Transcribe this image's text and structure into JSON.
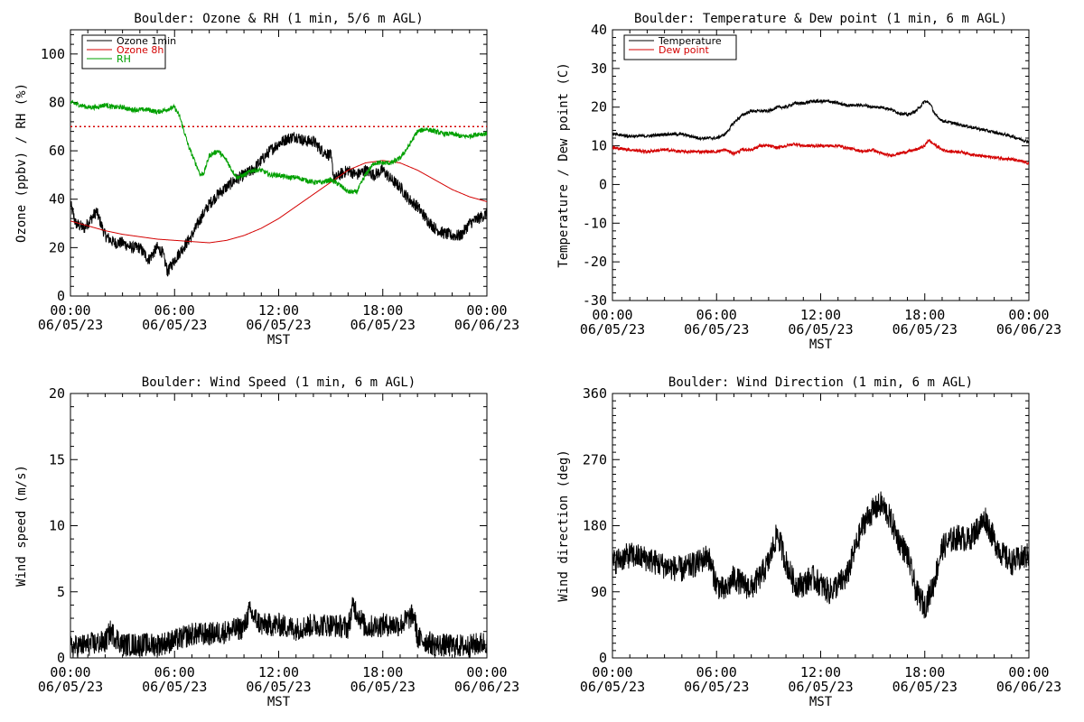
{
  "chart_data": [
    {
      "type": "line",
      "title": "Boulder: Ozone & RH (1 min, 5/6 m AGL)",
      "ylabel": "Ozone (ppbv) / RH (%)",
      "xlabel": "MST",
      "ylim": [
        0,
        110
      ],
      "yticks": [
        0,
        20,
        40,
        60,
        80,
        100
      ],
      "xlim": [
        0,
        24
      ],
      "xticks": [
        {
          "t": "00:00",
          "d": "06/05/23"
        },
        {
          "t": "06:00",
          "d": "06/05/23"
        },
        {
          "t": "12:00",
          "d": "06/05/23"
        },
        {
          "t": "18:00",
          "d": "06/05/23"
        },
        {
          "t": "00:00",
          "d": "06/06/23"
        }
      ],
      "legend": "top-left",
      "reference_line": {
        "y": 70,
        "color": "#d40000",
        "style": "dotted"
      },
      "series": [
        {
          "name": "Ozone 1min",
          "color": "#000000",
          "noise": 2.5,
          "x": [
            0,
            0.3,
            0.8,
            1.2,
            1.5,
            2,
            2.5,
            3,
            3.5,
            4,
            4.5,
            5,
            5.3,
            5.6,
            6,
            6.5,
            7,
            7.5,
            8,
            8.5,
            9,
            9.5,
            10,
            10.5,
            11,
            11.5,
            12,
            12.5,
            13,
            13.5,
            14,
            14.5,
            15,
            15.2,
            15.5,
            16,
            16.5,
            17,
            17.5,
            18,
            18.5,
            19,
            19.5,
            20,
            20.5,
            21,
            21.5,
            22,
            22.5,
            23,
            23.5,
            24
          ],
          "y": [
            38,
            30,
            28,
            32,
            35,
            25,
            22,
            22,
            20,
            20,
            15,
            20,
            18,
            10,
            15,
            20,
            25,
            32,
            38,
            42,
            45,
            48,
            50,
            52,
            56,
            60,
            63,
            65,
            66,
            64,
            64,
            60,
            58,
            48,
            50,
            52,
            50,
            52,
            50,
            52,
            48,
            45,
            40,
            37,
            32,
            28,
            26,
            25,
            25,
            30,
            32,
            34
          ]
        },
        {
          "name": "Ozone 8h",
          "color": "#d40000",
          "noise": 0,
          "x": [
            0,
            1,
            2,
            3,
            4,
            5,
            6,
            7,
            8,
            9,
            10,
            11,
            12,
            13,
            14,
            15,
            16,
            17,
            18,
            19,
            20,
            21,
            22,
            23,
            24
          ],
          "y": [
            31,
            29,
            27,
            25.5,
            24.5,
            23.5,
            23,
            22.5,
            22,
            23,
            25,
            28,
            32,
            37,
            42,
            47,
            52,
            55,
            56,
            55,
            52,
            48,
            44,
            41,
            39
          ]
        },
        {
          "name": "RH",
          "color": "#00a000",
          "noise": 1,
          "x": [
            0,
            0.5,
            1,
            1.5,
            2,
            2.5,
            3,
            3.5,
            4,
            4.5,
            5,
            5.5,
            6,
            6.3,
            6.8,
            7.2,
            7.5,
            7.7,
            8,
            8.5,
            9,
            9.3,
            9.6,
            10,
            10.5,
            11,
            11.5,
            12,
            12.5,
            13,
            13.5,
            14,
            14.5,
            15,
            15.5,
            16,
            16.5,
            17,
            17.5,
            18,
            18.5,
            19,
            19.5,
            20,
            20.5,
            21,
            21.5,
            22,
            22.5,
            23,
            23.5,
            24
          ],
          "y": [
            80,
            79,
            78,
            78,
            79,
            78,
            78,
            77,
            77,
            77,
            76,
            77,
            78,
            74,
            62,
            55,
            50,
            51,
            58,
            60,
            56,
            52,
            49,
            50,
            52,
            52,
            50,
            50,
            49,
            49,
            48,
            47,
            47,
            48,
            46,
            43,
            43,
            50,
            55,
            55,
            55,
            57,
            62,
            68,
            69,
            68,
            67,
            67,
            66,
            66,
            67,
            67
          ]
        }
      ]
    },
    {
      "type": "line",
      "title": "Boulder: Temperature & Dew point (1 min, 6 m AGL)",
      "ylabel": "Temperature / Dew point (C)",
      "xlabel": "MST",
      "ylim": [
        -30,
        40
      ],
      "yticks": [
        -30,
        -20,
        -10,
        0,
        10,
        20,
        30,
        40
      ],
      "xlim": [
        0,
        24
      ],
      "xticks": [
        {
          "t": "00:00",
          "d": "06/05/23"
        },
        {
          "t": "06:00",
          "d": "06/05/23"
        },
        {
          "t": "12:00",
          "d": "06/05/23"
        },
        {
          "t": "18:00",
          "d": "06/05/23"
        },
        {
          "t": "00:00",
          "d": "06/06/23"
        }
      ],
      "legend": "top-left",
      "series": [
        {
          "name": "Temperature",
          "color": "#000000",
          "noise": 0.4,
          "x": [
            0,
            1,
            2,
            3,
            4,
            5,
            6,
            6.5,
            7,
            7.5,
            8,
            8.5,
            9,
            9.5,
            10,
            10.5,
            11,
            11.5,
            12,
            12.5,
            13,
            13.5,
            14,
            14.5,
            15,
            15.5,
            16,
            16.5,
            17,
            17.5,
            18,
            18.3,
            18.6,
            19,
            19.5,
            20,
            20.5,
            21,
            22,
            23,
            24
          ],
          "y": [
            13,
            12.5,
            12.5,
            13,
            13,
            12,
            12,
            13,
            16,
            18,
            19,
            19,
            19,
            20,
            20,
            21,
            21,
            21.5,
            21.5,
            21.5,
            21,
            20.5,
            20.5,
            20.5,
            20,
            20,
            19.5,
            18.5,
            18,
            19,
            21.5,
            21,
            18,
            16.5,
            16,
            15.5,
            15,
            14.5,
            13.5,
            12.5,
            11
          ]
        },
        {
          "name": "Dew point",
          "color": "#d40000",
          "noise": 0.4,
          "x": [
            0,
            1,
            2,
            3,
            4,
            5,
            6,
            6.5,
            7,
            7.5,
            8,
            8.5,
            9,
            9.5,
            10,
            10.5,
            11,
            11.5,
            12,
            12.5,
            13,
            13.5,
            14,
            14.5,
            15,
            15.5,
            16,
            16.5,
            17,
            17.5,
            18,
            18.2,
            18.5,
            19,
            19.5,
            20,
            20.5,
            21,
            22,
            23,
            24
          ],
          "y": [
            9.5,
            9,
            8.5,
            9,
            8.5,
            8.5,
            8.5,
            9,
            8,
            9,
            9,
            10,
            10,
            9.5,
            10,
            10.5,
            10,
            10,
            10,
            10,
            10,
            9.5,
            9,
            8.5,
            9,
            8,
            7.5,
            8,
            8.5,
            9,
            10,
            11.5,
            10.5,
            9,
            8.5,
            8.5,
            8,
            7.5,
            7,
            6.5,
            5.5
          ]
        }
      ]
    },
    {
      "type": "line",
      "title": "Boulder: Wind Speed (1 min, 6 m AGL)",
      "ylabel": "Wind speed (m/s)",
      "xlabel": "MST",
      "ylim": [
        0,
        20
      ],
      "yticks": [
        0,
        5,
        10,
        15,
        20
      ],
      "xlim": [
        0,
        24
      ],
      "xticks": [
        {
          "t": "00:00",
          "d": "06/05/23"
        },
        {
          "t": "06:00",
          "d": "06/05/23"
        },
        {
          "t": "12:00",
          "d": "06/05/23"
        },
        {
          "t": "18:00",
          "d": "06/05/23"
        },
        {
          "t": "00:00",
          "d": "06/06/23"
        }
      ],
      "series": [
        {
          "color": "#000000",
          "noise": 0.9,
          "x": [
            0,
            1,
            2,
            2.3,
            3,
            4,
            5,
            6,
            7,
            8,
            9,
            10,
            10.3,
            11,
            12,
            13,
            14,
            15,
            16,
            16.3,
            17,
            18,
            19,
            19.8,
            20,
            21,
            22,
            23,
            24
          ],
          "y": [
            0.8,
            1,
            1.2,
            2,
            1,
            1,
            1,
            1.3,
            1.8,
            1.8,
            2,
            2.3,
            3.5,
            2.5,
            2.5,
            2.2,
            2.5,
            2.5,
            2.3,
            4,
            2.3,
            2.5,
            2.5,
            3.3,
            1.5,
            1,
            0.9,
            0.9,
            1.2
          ]
        }
      ]
    },
    {
      "type": "line",
      "title": "Boulder: Wind Direction (1 min, 6 m AGL)",
      "ylabel": "Wind direction (deg)",
      "xlabel": "MST",
      "ylim": [
        0,
        360
      ],
      "yticks": [
        0,
        90,
        180,
        270,
        360
      ],
      "xlim": [
        0,
        24
      ],
      "xticks": [
        {
          "t": "00:00",
          "d": "06/05/23"
        },
        {
          "t": "06:00",
          "d": "06/05/23"
        },
        {
          "t": "12:00",
          "d": "06/05/23"
        },
        {
          "t": "18:00",
          "d": "06/05/23"
        },
        {
          "t": "00:00",
          "d": "06/06/23"
        }
      ],
      "series": [
        {
          "color": "#000000",
          "noise": 18,
          "x": [
            0,
            1,
            2,
            3,
            4,
            5,
            5.5,
            6,
            6.5,
            7,
            7.5,
            8,
            8.5,
            9,
            9.5,
            10,
            10.5,
            11,
            11.5,
            12,
            12.5,
            13,
            13.5,
            14,
            14.5,
            15,
            15.5,
            16,
            16.5,
            17,
            17.5,
            18,
            18.5,
            19,
            19.5,
            20,
            20.5,
            21,
            21.5,
            22,
            22.5,
            23,
            23.5,
            24
          ],
          "y": [
            130,
            140,
            135,
            125,
            120,
            130,
            140,
            100,
            90,
            110,
            100,
            95,
            110,
            130,
            170,
            130,
            100,
            100,
            110,
            100,
            90,
            100,
            110,
            150,
            185,
            200,
            210,
            190,
            160,
            140,
            90,
            70,
            100,
            150,
            160,
            165,
            160,
            175,
            190,
            160,
            140,
            130,
            135,
            140
          ]
        }
      ]
    }
  ]
}
